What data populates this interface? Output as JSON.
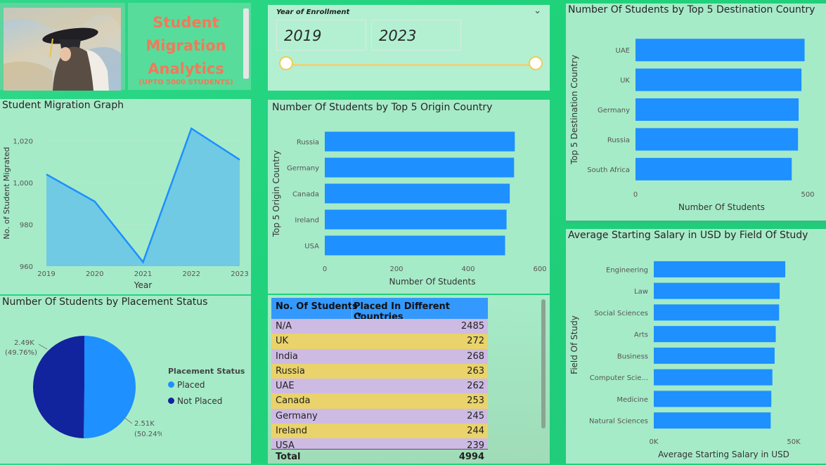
{
  "header": {
    "title_lines": [
      "Student",
      "Migration",
      "Analytics"
    ],
    "subtitle": "(UPTO 5000 STUDENTS)"
  },
  "slicer": {
    "label": "Year of Enrollment",
    "from": "2019",
    "to": "2023",
    "range_fraction": [
      0,
      1
    ]
  },
  "colors": {
    "bar": "#1e90ff",
    "area_fill": "#6cc7e6",
    "line": "#1e8fff",
    "placed": "#1e90ff",
    "not_placed": "#12239e",
    "row_purple": "#cdbbe4",
    "row_yellow": "#e9d36a",
    "header": "#3399ff"
  },
  "line_chart": {
    "title": "Student Migration Graph",
    "chart_data": {
      "type": "area",
      "x": [
        2019,
        2020,
        2021,
        2022,
        2023
      ],
      "values": [
        1004,
        991,
        962,
        1026,
        1011
      ],
      "xlabel": "Year",
      "ylabel": "No. of Student Migrated",
      "ylim": [
        960,
        1030
      ],
      "yticks": [
        "960",
        "980",
        "1,000",
        "1,020"
      ],
      "xticks": [
        "2019",
        "2020",
        "2021",
        "2022",
        "2023"
      ]
    }
  },
  "origin_chart": {
    "title": "Number Of Students by Top 5 Origin Country",
    "chart_data": {
      "type": "bar",
      "orientation": "horizontal",
      "categories": [
        "Russia",
        "Germany",
        "Canada",
        "Ireland",
        "USA"
      ],
      "values": [
        530,
        528,
        516,
        507,
        503
      ],
      "xlabel": "Number Of Students",
      "ylabel": "Top 5 Origin Country",
      "xlim": [
        0,
        600
      ],
      "xticks": [
        "0",
        "200",
        "400",
        "600"
      ]
    }
  },
  "destination_chart": {
    "title": "Number Of Students by Top 5 Destination Country",
    "chart_data": {
      "type": "bar",
      "orientation": "horizontal",
      "categories": [
        "UAE",
        "UK",
        "Germany",
        "Russia",
        "South Africa"
      ],
      "values": [
        540,
        530,
        521,
        519,
        499
      ],
      "xlabel": "Number Of Students",
      "ylabel": "Top 5 Destination Country",
      "xlim": [
        0,
        550
      ],
      "xticks": [
        "0",
        "500"
      ]
    }
  },
  "salary_chart": {
    "title": "Average Starting Salary in USD by Field Of Study",
    "chart_data": {
      "type": "bar",
      "orientation": "horizontal",
      "categories": [
        "Engineering",
        "Law",
        "Social Sciences",
        "Arts",
        "Business",
        "Computer Scie...",
        "Medicine",
        "Natural Sciences"
      ],
      "values": [
        47000,
        45000,
        44800,
        43600,
        43200,
        42400,
        42000,
        41800
      ],
      "xlabel": "Average Starting Salary in USD",
      "ylabel": "Field Of Study",
      "xlim": [
        0,
        50000
      ],
      "xticks": [
        "0K",
        "50K"
      ]
    }
  },
  "pie_chart": {
    "title": "Number Of Students by Placement Status",
    "chart_data": {
      "type": "pie",
      "categories": [
        "Placed",
        "Not Placed"
      ],
      "values": [
        2510,
        2490
      ],
      "labels": [
        [
          "2.51K",
          "(50.24%)"
        ],
        [
          "2.49K",
          "(49.76%)"
        ]
      ]
    },
    "legend_title": "Placement Status",
    "legend": [
      "Placed",
      "Not Placed"
    ]
  },
  "table": {
    "col1": "No. Of Students",
    "col2": "Placed In Different Countries",
    "rows": [
      {
        "k": "N/A",
        "v": "2485"
      },
      {
        "k": "UK",
        "v": "272"
      },
      {
        "k": "India",
        "v": "268"
      },
      {
        "k": "Russia",
        "v": "263"
      },
      {
        "k": "UAE",
        "v": "262"
      },
      {
        "k": "Canada",
        "v": "253"
      },
      {
        "k": "Germany",
        "v": "245"
      },
      {
        "k": "Ireland",
        "v": "244"
      },
      {
        "k": "USA",
        "v": "239"
      }
    ],
    "total_label": "Total",
    "total_value": "4994"
  }
}
